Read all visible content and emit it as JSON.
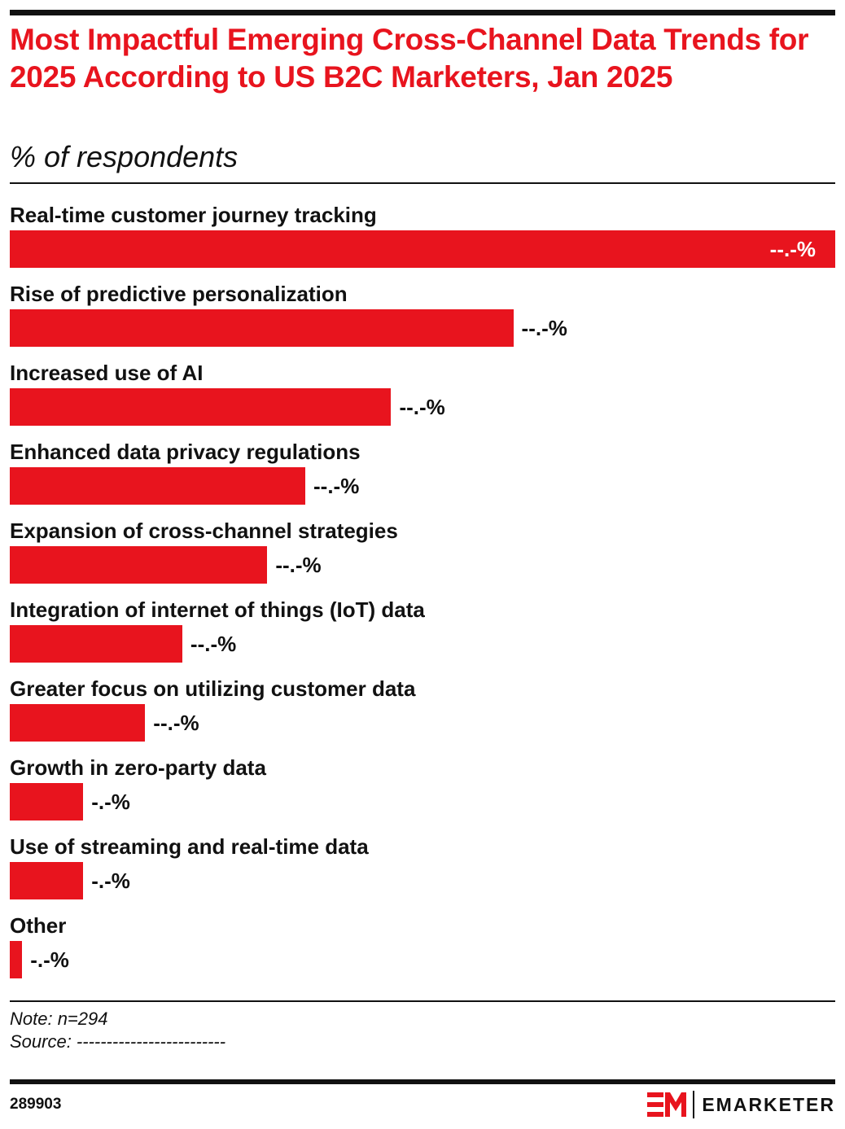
{
  "chart_data": {
    "type": "bar",
    "orientation": "horizontal",
    "title": "Most Impactful Emerging Cross-Channel Data Trends for 2025 According to US B2C Marketers, Jan 2025",
    "subtitle": "% of respondents",
    "categories": [
      "Real-time customer journey tracking",
      "Rise of predictive personalization",
      "Increased use of AI",
      "Enhanced data privacy regulations",
      "Expansion of cross-channel strategies",
      "Integration of internet of things (IoT) data",
      "Greater focus on utilizing customer data",
      "Growth in zero-party data",
      "Use of streaming and real-time data",
      "Other"
    ],
    "values": [
      100,
      61,
      46.2,
      35.8,
      31.2,
      20.9,
      16.4,
      8.9,
      8.9,
      1.5
    ],
    "value_labels": [
      "--.-%",
      "--.-%",
      "--.-%",
      "--.-%",
      "--.-%",
      "--.-%",
      "--.-%",
      "-.-%",
      "-.-%",
      "-.-%"
    ],
    "xlim": [
      0,
      100
    ],
    "bar_color": "#e8141e",
    "grid": false,
    "legend": "none"
  },
  "footer": {
    "note": "Note: n=294",
    "source": "Source: -------------------------",
    "chart_id": "289903",
    "brand": "EMARKETER",
    "brand_color": "#e8141e"
  }
}
